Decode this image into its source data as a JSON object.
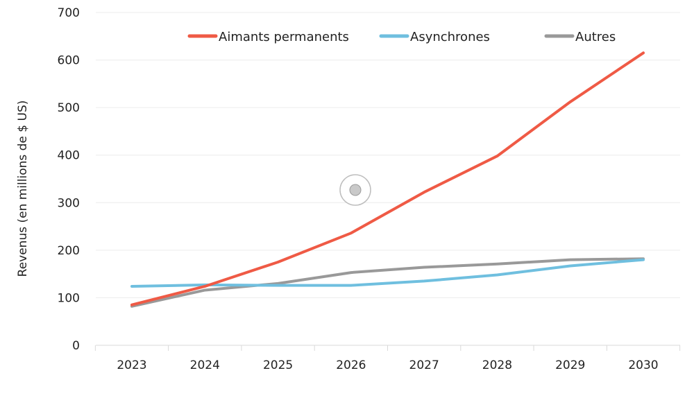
{
  "chart_data": {
    "type": "line",
    "x": [
      "2023",
      "2024",
      "2025",
      "2026",
      "2027",
      "2028",
      "2029",
      "2030"
    ],
    "series": [
      {
        "name": "Aimants permanents",
        "color": "#ef5a45",
        "values": [
          85,
          124,
          175,
          236,
          322,
          398,
          512,
          615
        ]
      },
      {
        "name": "Asynchrones",
        "color": "#6fbfdf",
        "values": [
          124,
          127,
          126,
          126,
          135,
          148,
          167,
          180
        ]
      },
      {
        "name": "Autres",
        "color": "#999999",
        "values": [
          82,
          116,
          130,
          153,
          164,
          171,
          180,
          182
        ]
      }
    ],
    "ylabel": "Revenus (en millions de $ US)",
    "ylim": [
      0,
      700
    ],
    "yticks": [
      "0",
      "100",
      "200",
      "300",
      "400",
      "500",
      "600",
      "700"
    ],
    "grid": true,
    "legend_position": "top"
  }
}
